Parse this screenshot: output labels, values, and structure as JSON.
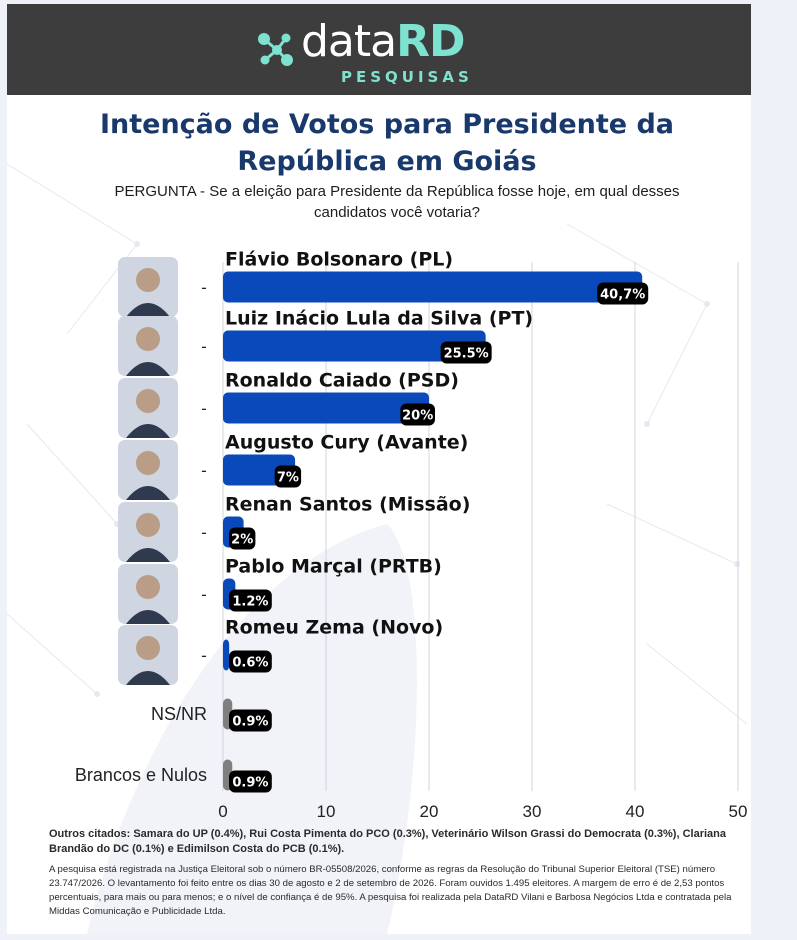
{
  "brand": {
    "name_part1": "data",
    "name_part2": "RD",
    "subtitle": "PESQUISAS",
    "logo_icon": "molecule-dots-icon",
    "accent_color": "#7ee2d0"
  },
  "title": "Intenção de Votos para Presidente da República em Goiás",
  "question": "PERGUNTA - Se a eleição para Presidente da República fosse hoje, em qual desses candidatos você votaria?",
  "chart_data": {
    "type": "bar",
    "orientation": "horizontal",
    "categories": [
      "Flávio Bolsonaro (PL)",
      "Luiz Inácio Lula da Silva (PT)",
      "Ronaldo Caiado  (PSD)",
      "Augusto Cury (Avante)",
      "Renan Santos (Missão)",
      "Pablo Marçal (PRTB)",
      "Romeu Zema (Novo)",
      "NS/NR",
      "Brancos e Nulos"
    ],
    "values": [
      40.7,
      25.5,
      20,
      7,
      2,
      1.2,
      0.6,
      0.9,
      0.9
    ],
    "value_labels": [
      "40,7%",
      "25.5%",
      "20%",
      "7%",
      "2%",
      "1.2%",
      "0.6%",
      "0.9%",
      "0.9%"
    ],
    "category_marks": [
      "-",
      "-",
      "-",
      "-",
      "-",
      "-",
      "-",
      "",
      ""
    ],
    "has_photo": [
      true,
      true,
      true,
      true,
      true,
      true,
      true,
      false,
      false
    ],
    "xlim": [
      0,
      50
    ],
    "xticks": [
      0,
      10,
      20,
      30,
      40,
      50
    ],
    "grid": true,
    "bar_colors": [
      "#0a49b9",
      "#0a49b9",
      "#0a49b9",
      "#0a49b9",
      "#0a49b9",
      "#0a49b9",
      "#0a49b9",
      "#7f7f7f",
      "#7f7f7f"
    ]
  },
  "notes": {
    "others": "Outros citados: Samara do UP (0.4%), Rui Costa Pimenta do PCO (0.3%), Veterinário Wilson Grassi do Democrata (0.3%), Clariana Brandão do DC (0.1%) e Edimilson Costa do PCB (0.1%).",
    "methodology": "A pesquisa está registrada na Justiça Eleitoral sob o número BR-05508/2026, conforme as regras da Resolução do Tribunal Superior Eleitoral (TSE) número 23.747/2026. O levantamento foi feito entre os dias 30 de agosto e 2 de setembro de 2026. Foram ouvidos 1.495 eleitores. A margem de erro é de 2,53 pontos percentuais, para mais ou para menos; e o nível de confiança é de 95%. A pesquisa foi realizada pela DataRD Vilani e Barbosa Negócios Ltda e contratada pela Middas Comunicação e Publicidade Ltda."
  }
}
